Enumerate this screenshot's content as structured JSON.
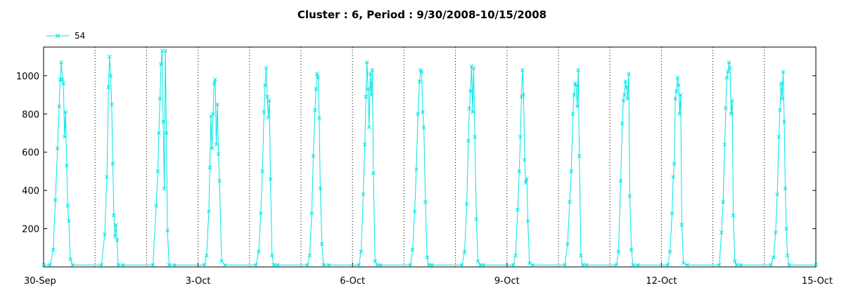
{
  "chart_data": {
    "type": "line",
    "title": "Cluster : 6, Period : 9/30/2008-10/15/2008",
    "xlabel": "",
    "ylabel": "",
    "x_axis": {
      "unit": "date",
      "range": [
        "2008-09-30",
        "2008-10-15"
      ],
      "tick_labels": [
        "30-Sep",
        "3-Oct",
        "6-Oct",
        "9-Oct",
        "12-Oct",
        "15-Oct"
      ],
      "gridlines": "dotted vertical at each day boundary"
    },
    "y_axis": {
      "range": [
        0,
        1150
      ],
      "tick_labels": [
        "200",
        "400",
        "600",
        "800",
        "1000"
      ],
      "ticks": [
        200,
        400,
        600,
        800,
        1000
      ]
    },
    "legend": {
      "placement": "top-left",
      "entries": [
        "54"
      ]
    },
    "colors": {
      "series": "#00e5e5",
      "axis": "#000000",
      "grid": "#000000"
    },
    "series": [
      {
        "name": "54",
        "marker": "x",
        "points": [
          [
            "2008-09-30 00:00",
            10
          ],
          [
            "2008-09-30 03:00",
            10
          ],
          [
            "2008-09-30 04:30",
            90
          ],
          [
            "2008-09-30 05:30",
            350
          ],
          [
            "2008-09-30 06:30",
            620
          ],
          [
            "2008-09-30 07:15",
            840
          ],
          [
            "2008-09-30 07:45",
            980
          ],
          [
            "2008-09-30 08:15",
            1070
          ],
          [
            "2008-09-30 08:45",
            980
          ],
          [
            "2008-09-30 09:15",
            960
          ],
          [
            "2008-09-30 09:45",
            680
          ],
          [
            "2008-09-30 10:15",
            810
          ],
          [
            "2008-09-30 10:45",
            530
          ],
          [
            "2008-09-30 11:15",
            320
          ],
          [
            "2008-09-30 11:45",
            240
          ],
          [
            "2008-09-30 12:30",
            40
          ],
          [
            "2008-09-30 13:30",
            10
          ],
          [
            "2008-10-01 03:00",
            10
          ],
          [
            "2008-10-01 04:30",
            170
          ],
          [
            "2008-10-01 05:30",
            470
          ],
          [
            "2008-10-01 06:15",
            940
          ],
          [
            "2008-10-01 06:45",
            1100
          ],
          [
            "2008-10-01 07:15",
            1000
          ],
          [
            "2008-10-01 07:45",
            850
          ],
          [
            "2008-10-01 08:15",
            540
          ],
          [
            "2008-10-01 08:45",
            270
          ],
          [
            "2008-10-01 09:15",
            160
          ],
          [
            "2008-10-01 09:45",
            220
          ],
          [
            "2008-10-01 10:15",
            140
          ],
          [
            "2008-10-01 10:45",
            10
          ],
          [
            "2008-10-01 13:00",
            10
          ],
          [
            "2008-10-02 03:00",
            10
          ],
          [
            "2008-10-02 04:30",
            320
          ],
          [
            "2008-10-02 05:15",
            500
          ],
          [
            "2008-10-02 05:45",
            700
          ],
          [
            "2008-10-02 06:15",
            880
          ],
          [
            "2008-10-02 06:45",
            1060
          ],
          [
            "2008-10-02 07:15",
            1130
          ],
          [
            "2008-10-02 07:45",
            760
          ],
          [
            "2008-10-02 08:15",
            410
          ],
          [
            "2008-10-02 08:45",
            1130
          ],
          [
            "2008-10-02 09:15",
            700
          ],
          [
            "2008-10-02 09:45",
            190
          ],
          [
            "2008-10-02 10:30",
            10
          ],
          [
            "2008-10-02 13:00",
            10
          ],
          [
            "2008-10-03 03:00",
            10
          ],
          [
            "2008-10-03 04:00",
            60
          ],
          [
            "2008-10-03 05:00",
            290
          ],
          [
            "2008-10-03 05:30",
            520
          ],
          [
            "2008-10-03 06:00",
            790
          ],
          [
            "2008-10-03 06:30",
            620
          ],
          [
            "2008-10-03 07:00",
            800
          ],
          [
            "2008-10-03 07:30",
            960
          ],
          [
            "2008-10-03 08:00",
            980
          ],
          [
            "2008-10-03 08:30",
            640
          ],
          [
            "2008-10-03 09:00",
            850
          ],
          [
            "2008-10-03 09:30",
            590
          ],
          [
            "2008-10-03 10:00",
            450
          ],
          [
            "2008-10-03 11:00",
            30
          ],
          [
            "2008-10-03 12:30",
            10
          ],
          [
            "2008-10-04 03:00",
            10
          ],
          [
            "2008-10-04 04:15",
            80
          ],
          [
            "2008-10-04 05:15",
            280
          ],
          [
            "2008-10-04 06:00",
            500
          ],
          [
            "2008-10-04 06:45",
            810
          ],
          [
            "2008-10-04 07:15",
            950
          ],
          [
            "2008-10-04 07:45",
            1040
          ],
          [
            "2008-10-04 08:15",
            890
          ],
          [
            "2008-10-04 08:45",
            780
          ],
          [
            "2008-10-04 09:15",
            870
          ],
          [
            "2008-10-04 09:45",
            460
          ],
          [
            "2008-10-04 10:30",
            60
          ],
          [
            "2008-10-04 11:15",
            10
          ],
          [
            "2008-10-04 13:00",
            10
          ],
          [
            "2008-10-05 03:00",
            10
          ],
          [
            "2008-10-05 04:00",
            60
          ],
          [
            "2008-10-05 05:00",
            280
          ],
          [
            "2008-10-05 05:45",
            580
          ],
          [
            "2008-10-05 06:30",
            820
          ],
          [
            "2008-10-05 07:00",
            930
          ],
          [
            "2008-10-05 07:30",
            1010
          ],
          [
            "2008-10-05 08:00",
            990
          ],
          [
            "2008-10-05 08:30",
            780
          ],
          [
            "2008-10-05 09:00",
            410
          ],
          [
            "2008-10-05 09:45",
            120
          ],
          [
            "2008-10-05 10:30",
            10
          ],
          [
            "2008-10-05 13:00",
            10
          ],
          [
            "2008-10-06 03:00",
            10
          ],
          [
            "2008-10-06 04:00",
            80
          ],
          [
            "2008-10-06 05:00",
            380
          ],
          [
            "2008-10-06 05:45",
            640
          ],
          [
            "2008-10-06 06:15",
            890
          ],
          [
            "2008-10-06 06:45",
            1070
          ],
          [
            "2008-10-06 07:15",
            930
          ],
          [
            "2008-10-06 07:45",
            730
          ],
          [
            "2008-10-06 08:15",
            1010
          ],
          [
            "2008-10-06 08:45",
            900
          ],
          [
            "2008-10-06 09:15",
            1030
          ],
          [
            "2008-10-06 09:45",
            490
          ],
          [
            "2008-10-06 10:30",
            30
          ],
          [
            "2008-10-06 11:30",
            10
          ],
          [
            "2008-10-06 13:00",
            10
          ],
          [
            "2008-10-07 03:00",
            10
          ],
          [
            "2008-10-07 04:00",
            90
          ],
          [
            "2008-10-07 05:00",
            290
          ],
          [
            "2008-10-07 05:45",
            510
          ],
          [
            "2008-10-07 06:30",
            800
          ],
          [
            "2008-10-07 07:15",
            970
          ],
          [
            "2008-10-07 07:45",
            1030
          ],
          [
            "2008-10-07 08:15",
            1020
          ],
          [
            "2008-10-07 08:45",
            810
          ],
          [
            "2008-10-07 09:15",
            730
          ],
          [
            "2008-10-07 10:00",
            340
          ],
          [
            "2008-10-07 10:45",
            50
          ],
          [
            "2008-10-07 11:30",
            10
          ],
          [
            "2008-10-07 13:00",
            10
          ],
          [
            "2008-10-08 03:00",
            10
          ],
          [
            "2008-10-08 04:15",
            80
          ],
          [
            "2008-10-08 05:15",
            330
          ],
          [
            "2008-10-08 06:00",
            660
          ],
          [
            "2008-10-08 06:30",
            830
          ],
          [
            "2008-10-08 07:00",
            920
          ],
          [
            "2008-10-08 07:30",
            1050
          ],
          [
            "2008-10-08 08:00",
            810
          ],
          [
            "2008-10-08 08:30",
            1040
          ],
          [
            "2008-10-08 09:00",
            680
          ],
          [
            "2008-10-08 09:45",
            250
          ],
          [
            "2008-10-08 10:30",
            30
          ],
          [
            "2008-10-08 11:30",
            10
          ],
          [
            "2008-10-08 13:00",
            10
          ],
          [
            "2008-10-09 03:00",
            10
          ],
          [
            "2008-10-09 04:00",
            60
          ],
          [
            "2008-10-09 05:00",
            300
          ],
          [
            "2008-10-09 05:45",
            500
          ],
          [
            "2008-10-09 06:15",
            680
          ],
          [
            "2008-10-09 06:45",
            890
          ],
          [
            "2008-10-09 07:15",
            1030
          ],
          [
            "2008-10-09 07:45",
            900
          ],
          [
            "2008-10-09 08:15",
            560
          ],
          [
            "2008-10-09 08:45",
            440
          ],
          [
            "2008-10-09 09:15",
            460
          ],
          [
            "2008-10-09 09:45",
            240
          ],
          [
            "2008-10-09 10:30",
            20
          ],
          [
            "2008-10-09 12:00",
            10
          ],
          [
            "2008-10-10 03:00",
            10
          ],
          [
            "2008-10-10 04:15",
            120
          ],
          [
            "2008-10-10 05:15",
            340
          ],
          [
            "2008-10-10 06:00",
            500
          ],
          [
            "2008-10-10 06:45",
            800
          ],
          [
            "2008-10-10 07:15",
            900
          ],
          [
            "2008-10-10 07:45",
            960
          ],
          [
            "2008-10-10 08:15",
            950
          ],
          [
            "2008-10-10 08:45",
            840
          ],
          [
            "2008-10-10 09:15",
            1030
          ],
          [
            "2008-10-10 09:45",
            580
          ],
          [
            "2008-10-10 10:30",
            60
          ],
          [
            "2008-10-10 11:15",
            10
          ],
          [
            "2008-10-10 13:00",
            10
          ],
          [
            "2008-10-11 03:00",
            10
          ],
          [
            "2008-10-11 04:00",
            80
          ],
          [
            "2008-10-11 05:00",
            450
          ],
          [
            "2008-10-11 05:45",
            750
          ],
          [
            "2008-10-11 06:15",
            870
          ],
          [
            "2008-10-11 06:45",
            900
          ],
          [
            "2008-10-11 07:15",
            970
          ],
          [
            "2008-10-11 07:45",
            940
          ],
          [
            "2008-10-11 08:15",
            880
          ],
          [
            "2008-10-11 08:45",
            1010
          ],
          [
            "2008-10-11 09:15",
            370
          ],
          [
            "2008-10-11 10:00",
            90
          ],
          [
            "2008-10-11 10:45",
            10
          ],
          [
            "2008-10-11 13:00",
            10
          ],
          [
            "2008-10-12 03:00",
            10
          ],
          [
            "2008-10-12 04:00",
            80
          ],
          [
            "2008-10-12 05:00",
            280
          ],
          [
            "2008-10-12 05:30",
            470
          ],
          [
            "2008-10-12 06:00",
            540
          ],
          [
            "2008-10-12 06:30",
            880
          ],
          [
            "2008-10-12 07:00",
            920
          ],
          [
            "2008-10-12 07:30",
            990
          ],
          [
            "2008-10-12 08:00",
            950
          ],
          [
            "2008-10-12 08:30",
            800
          ],
          [
            "2008-10-12 09:00",
            900
          ],
          [
            "2008-10-12 09:30",
            220
          ],
          [
            "2008-10-12 10:15",
            20
          ],
          [
            "2008-10-12 12:00",
            10
          ],
          [
            "2008-10-13 03:00",
            10
          ],
          [
            "2008-10-13 04:00",
            180
          ],
          [
            "2008-10-13 04:45",
            340
          ],
          [
            "2008-10-13 05:30",
            640
          ],
          [
            "2008-10-13 06:00",
            830
          ],
          [
            "2008-10-13 06:30",
            990
          ],
          [
            "2008-10-13 07:00",
            1020
          ],
          [
            "2008-10-13 07:30",
            1070
          ],
          [
            "2008-10-13 08:00",
            1040
          ],
          [
            "2008-10-13 08:30",
            800
          ],
          [
            "2008-10-13 09:00",
            870
          ],
          [
            "2008-10-13 09:30",
            270
          ],
          [
            "2008-10-13 10:15",
            30
          ],
          [
            "2008-10-13 11:00",
            10
          ],
          [
            "2008-10-13 13:00",
            10
          ],
          [
            "2008-10-14 03:00",
            10
          ],
          [
            "2008-10-14 04:15",
            50
          ],
          [
            "2008-10-14 05:15",
            180
          ],
          [
            "2008-10-14 06:00",
            380
          ],
          [
            "2008-10-14 06:45",
            680
          ],
          [
            "2008-10-14 07:15",
            820
          ],
          [
            "2008-10-14 07:45",
            960
          ],
          [
            "2008-10-14 08:15",
            880
          ],
          [
            "2008-10-14 08:45",
            1020
          ],
          [
            "2008-10-14 09:15",
            760
          ],
          [
            "2008-10-14 09:45",
            410
          ],
          [
            "2008-10-14 10:15",
            200
          ],
          [
            "2008-10-14 10:45",
            60
          ],
          [
            "2008-10-14 11:30",
            10
          ],
          [
            "2008-10-15 00:00",
            10
          ]
        ]
      }
    ]
  }
}
